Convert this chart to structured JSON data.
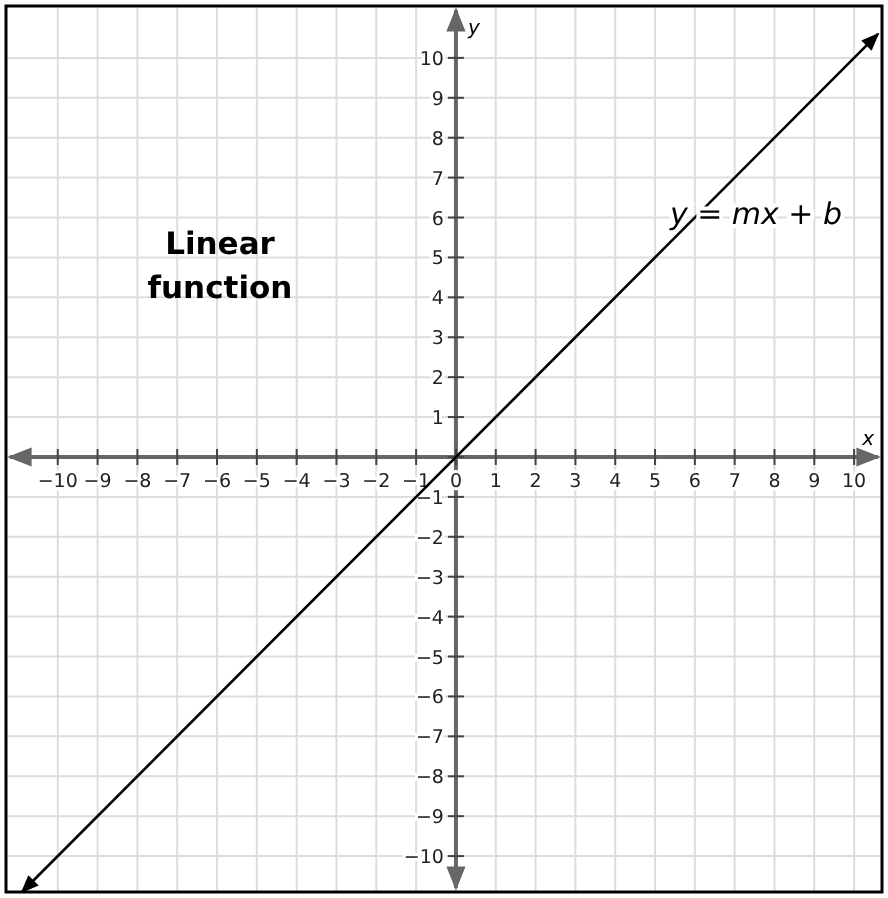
{
  "chart_data": {
    "type": "line",
    "title": "Linear function",
    "xlabel": "x",
    "ylabel": "y",
    "x": [
      -10.9,
      10.6
    ],
    "series": [
      {
        "color": "#000000",
        "values": [
          -10.9,
          10.6
        ]
      }
    ],
    "annotations": [
      "y = mx + b"
    ],
    "xlim": [
      -11.3,
      10.7
    ],
    "ylim": [
      -10.9,
      11.3
    ],
    "xticks": [
      {
        "value": -10,
        "label": "−10"
      },
      {
        "value": -9,
        "label": "−9"
      },
      {
        "value": -8,
        "label": "−8"
      },
      {
        "value": -7,
        "label": "−7"
      },
      {
        "value": -6,
        "label": "−6"
      },
      {
        "value": -5,
        "label": "−5"
      },
      {
        "value": -4,
        "label": "−4"
      },
      {
        "value": -3,
        "label": "−3"
      },
      {
        "value": -2,
        "label": "−2"
      },
      {
        "value": -1,
        "label": "−1"
      },
      0,
      1,
      2,
      3,
      4,
      5,
      6,
      7,
      8,
      9,
      10
    ],
    "yticks": [
      {
        "value": -10,
        "label": "−10"
      },
      {
        "value": -9,
        "label": "−9"
      },
      {
        "value": -8,
        "label": "−8"
      },
      {
        "value": -7,
        "label": "−7"
      },
      {
        "value": -6,
        "label": "−6"
      },
      {
        "value": -5,
        "label": "−5"
      },
      {
        "value": -4,
        "label": "−4"
      },
      {
        "value": -3,
        "label": "−3"
      },
      {
        "value": -2,
        "label": "−2"
      },
      {
        "value": -1,
        "label": "−1"
      },
      {
        "value": 0,
        "label": null
      },
      1,
      2,
      3,
      4,
      5,
      6,
      7,
      8,
      9,
      10
    ],
    "grid": true,
    "marker": "none",
    "line_style": "solid"
  }
}
